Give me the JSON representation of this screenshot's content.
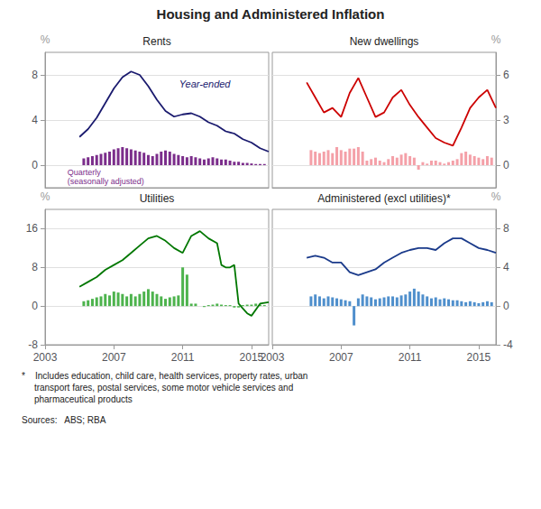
{
  "title": "Housing and Administered Inflation",
  "annotations": [
    "*    Includes education, child care, health services, property rates, urban\n     transport fares, postal services, some motor vehicle services and\n     pharmaceutical products",
    "Sources:   ABS; RBA"
  ],
  "chart_data": [
    {
      "type": "bar",
      "title": "Rents",
      "ylabel": "%",
      "xlim": [
        2003,
        2016
      ],
      "xticks": [
        2003,
        2007,
        2011,
        2015
      ],
      "ylim": [
        -2,
        10
      ],
      "yticks": [
        0,
        4,
        8
      ],
      "grid": true,
      "tick_labels": "y",
      "series": [
        {
          "type": "bar",
          "color": "#7B2D8B",
          "x": [
            2005.25,
            2005.5,
            2005.75,
            2006.0,
            2006.25,
            2006.5,
            2006.75,
            2007.0,
            2007.25,
            2007.5,
            2007.75,
            2008.0,
            2008.25,
            2008.5,
            2008.75,
            2009.0,
            2009.25,
            2009.5,
            2009.75,
            2010.0,
            2010.25,
            2010.5,
            2010.75,
            2011.0,
            2011.25,
            2011.5,
            2011.75,
            2012.0,
            2012.25,
            2012.5,
            2012.75,
            2013.0,
            2013.25,
            2013.5,
            2013.75,
            2014.0,
            2014.25,
            2014.5,
            2014.75,
            2015.0,
            2015.25,
            2015.5,
            2015.75
          ],
          "values": [
            0.6,
            0.7,
            0.8,
            0.9,
            1.0,
            1.1,
            1.2,
            1.4,
            1.5,
            1.6,
            1.5,
            1.4,
            1.3,
            1.2,
            1.1,
            0.9,
            0.8,
            1.0,
            1.2,
            1.3,
            1.2,
            1.0,
            0.9,
            0.8,
            0.7,
            0.8,
            0.7,
            0.6,
            0.5,
            0.6,
            0.7,
            0.6,
            0.5,
            0.5,
            0.4,
            0.3,
            0.3,
            0.2,
            0.2,
            0.15,
            0.1,
            0.1,
            0.1
          ]
        },
        {
          "type": "line",
          "color": "#1a1a6e",
          "x": [
            2005.0,
            2005.5,
            2006.0,
            2006.5,
            2007.0,
            2007.5,
            2008.0,
            2008.5,
            2009.0,
            2009.5,
            2010.0,
            2010.5,
            2011.0,
            2011.5,
            2012.0,
            2012.5,
            2013.0,
            2013.5,
            2014.0,
            2014.5,
            2015.0,
            2015.5,
            2016.0
          ],
          "values": [
            2.5,
            3.2,
            4.2,
            5.5,
            6.8,
            7.8,
            8.3,
            8.0,
            7.0,
            5.8,
            4.8,
            4.3,
            4.5,
            4.6,
            4.3,
            3.8,
            3.5,
            3.0,
            2.8,
            2.3,
            2.0,
            1.5,
            1.2
          ]
        }
      ],
      "annotations": [
        {
          "text": "Year-ended",
          "color": "#1a1a6e"
        },
        {
          "text": "Quarterly\n(seasonally adjusted)",
          "color": "#7B2D8B"
        }
      ]
    },
    {
      "type": "bar",
      "title": "New dwellings",
      "ylabel": "%",
      "xlim": [
        2003,
        2016
      ],
      "xticks": [
        2003,
        2007,
        2011,
        2015
      ],
      "ylim": [
        -1.5,
        7.5
      ],
      "yticks": [
        0,
        3,
        6
      ],
      "grid": true,
      "tick_labels": "y",
      "series": [
        {
          "type": "bar",
          "color": "#f4a0a8",
          "x": [
            2005.25,
            2005.5,
            2005.75,
            2006.0,
            2006.25,
            2006.5,
            2006.75,
            2007.0,
            2007.25,
            2007.5,
            2007.75,
            2008.0,
            2008.25,
            2008.5,
            2008.75,
            2009.0,
            2009.25,
            2009.5,
            2009.75,
            2010.0,
            2010.25,
            2010.5,
            2010.75,
            2011.0,
            2011.25,
            2011.5,
            2011.75,
            2012.0,
            2012.25,
            2012.5,
            2012.75,
            2013.0,
            2013.25,
            2013.5,
            2013.75,
            2014.0,
            2014.25,
            2014.5,
            2014.75,
            2015.0,
            2015.25,
            2015.5,
            2015.75
          ],
          "values": [
            1.0,
            0.9,
            0.8,
            0.9,
            1.0,
            0.8,
            1.2,
            1.0,
            0.9,
            1.1,
            1.1,
            1.2,
            0.9,
            0.3,
            0.4,
            0.5,
            0.3,
            0.2,
            0.4,
            0.6,
            0.5,
            0.7,
            0.8,
            0.6,
            0.5,
            -0.3,
            0.2,
            0.1,
            0.3,
            0.3,
            0.2,
            0.1,
            0.2,
            0.3,
            0.4,
            0.8,
            0.9,
            0.7,
            0.6,
            0.5,
            0.4,
            0.6,
            0.5
          ]
        },
        {
          "type": "line",
          "color": "#cc0000",
          "x": [
            2005.0,
            2005.5,
            2006.0,
            2006.5,
            2007.0,
            2007.5,
            2008.0,
            2008.5,
            2009.0,
            2009.5,
            2010.0,
            2010.5,
            2011.0,
            2011.5,
            2012.0,
            2012.5,
            2013.0,
            2013.5,
            2014.0,
            2014.5,
            2015.0,
            2015.5,
            2016.0
          ],
          "values": [
            5.5,
            4.5,
            3.5,
            3.8,
            3.2,
            4.8,
            5.8,
            4.5,
            3.2,
            3.5,
            4.5,
            5.0,
            4.0,
            3.2,
            2.5,
            1.8,
            1.5,
            1.3,
            2.5,
            3.8,
            4.5,
            5.0,
            3.8
          ]
        }
      ]
    },
    {
      "type": "bar",
      "title": "Utilities",
      "ylabel": "%",
      "xlim": [
        2003,
        2016
      ],
      "xticks": [
        2003,
        2007,
        2011,
        2015
      ],
      "ylim": [
        -8,
        20
      ],
      "yticks": [
        -8,
        0,
        8,
        16
      ],
      "grid": true,
      "series": [
        {
          "type": "bar",
          "color": "#4db34d",
          "x": [
            2005.25,
            2005.5,
            2005.75,
            2006.0,
            2006.25,
            2006.5,
            2006.75,
            2007.0,
            2007.25,
            2007.5,
            2007.75,
            2008.0,
            2008.25,
            2008.5,
            2008.75,
            2009.0,
            2009.25,
            2009.5,
            2009.75,
            2010.0,
            2010.25,
            2010.5,
            2010.75,
            2011.0,
            2011.25,
            2011.5,
            2011.75,
            2012.0,
            2012.25,
            2012.5,
            2012.75,
            2013.0,
            2013.25,
            2013.5,
            2013.75,
            2014.0,
            2014.25,
            2014.5,
            2014.75,
            2015.0,
            2015.25,
            2015.5,
            2015.75
          ],
          "values": [
            1.0,
            1.2,
            1.5,
            1.8,
            2.0,
            2.5,
            2.2,
            3.0,
            2.8,
            2.5,
            2.0,
            2.5,
            2.0,
            2.5,
            3.0,
            3.5,
            3.0,
            2.5,
            2.0,
            1.5,
            1.8,
            2.0,
            2.2,
            8.0,
            6.5,
            0.5,
            0.5,
            0.0,
            -0.2,
            0.2,
            0.3,
            0.5,
            0.3,
            0.2,
            0.2,
            -0.3,
            -0.3,
            0.2,
            0.3,
            0.3,
            0.5,
            0.3,
            0.2
          ]
        },
        {
          "type": "line",
          "color": "#007700",
          "x": [
            2005.0,
            2005.5,
            2006.0,
            2006.5,
            2007.0,
            2007.5,
            2008.0,
            2008.5,
            2009.0,
            2009.5,
            2010.0,
            2010.5,
            2011.0,
            2011.5,
            2012.0,
            2012.5,
            2013.0,
            2013.25,
            2013.5,
            2013.75,
            2014.0,
            2014.25,
            2014.5,
            2014.75,
            2015.0,
            2015.5,
            2016.0
          ],
          "values": [
            4.0,
            5.0,
            6.0,
            7.5,
            8.5,
            9.5,
            11.0,
            12.5,
            14.0,
            14.5,
            13.5,
            12.0,
            11.0,
            14.5,
            15.5,
            14.0,
            13.0,
            8.5,
            8.0,
            8.0,
            8.5,
            0.5,
            -0.5,
            -1.5,
            -2.0,
            0.5,
            0.8
          ]
        }
      ]
    },
    {
      "type": "bar",
      "title": "Administered (excl utilities)*",
      "ylabel": "%",
      "xlim": [
        2003,
        2016
      ],
      "xticks": [
        2003,
        2007,
        2011,
        2015
      ],
      "ylim": [
        -4,
        10
      ],
      "yticks": [
        -4,
        0,
        4,
        8
      ],
      "grid": true,
      "series": [
        {
          "type": "bar",
          "color": "#4f8fcc",
          "x": [
            2005.25,
            2005.5,
            2005.75,
            2006.0,
            2006.25,
            2006.5,
            2006.75,
            2007.0,
            2007.25,
            2007.5,
            2007.75,
            2008.0,
            2008.25,
            2008.5,
            2008.75,
            2009.0,
            2009.25,
            2009.5,
            2009.75,
            2010.0,
            2010.25,
            2010.5,
            2010.75,
            2011.0,
            2011.25,
            2011.5,
            2011.75,
            2012.0,
            2012.25,
            2012.5,
            2012.75,
            2013.0,
            2013.25,
            2013.5,
            2013.75,
            2014.0,
            2014.25,
            2014.5,
            2014.75,
            2015.0,
            2015.25,
            2015.5,
            2015.75
          ],
          "values": [
            1.0,
            1.2,
            1.0,
            0.8,
            1.0,
            0.9,
            0.8,
            0.7,
            0.6,
            0.5,
            -2.0,
            0.8,
            1.2,
            1.0,
            0.9,
            0.7,
            0.8,
            0.9,
            1.0,
            1.0,
            0.9,
            1.1,
            1.2,
            1.5,
            1.8,
            1.5,
            1.2,
            1.0,
            0.8,
            0.9,
            0.7,
            0.8,
            0.7,
            0.6,
            0.6,
            0.5,
            0.4,
            0.5,
            0.4,
            0.3,
            0.4,
            0.5,
            0.4
          ]
        },
        {
          "type": "line",
          "color": "#1a3a8a",
          "x": [
            2005.0,
            2005.5,
            2006.0,
            2006.5,
            2007.0,
            2007.5,
            2008.0,
            2008.5,
            2009.0,
            2009.5,
            2010.0,
            2010.5,
            2011.0,
            2011.5,
            2012.0,
            2012.5,
            2013.0,
            2013.5,
            2014.0,
            2014.5,
            2015.0,
            2015.5,
            2016.0
          ],
          "values": [
            5.0,
            5.2,
            5.0,
            4.5,
            4.5,
            3.5,
            3.2,
            3.5,
            3.8,
            4.5,
            5.0,
            5.5,
            5.8,
            6.0,
            6.0,
            5.8,
            6.5,
            7.0,
            7.0,
            6.5,
            6.0,
            5.8,
            5.5
          ]
        }
      ]
    }
  ]
}
